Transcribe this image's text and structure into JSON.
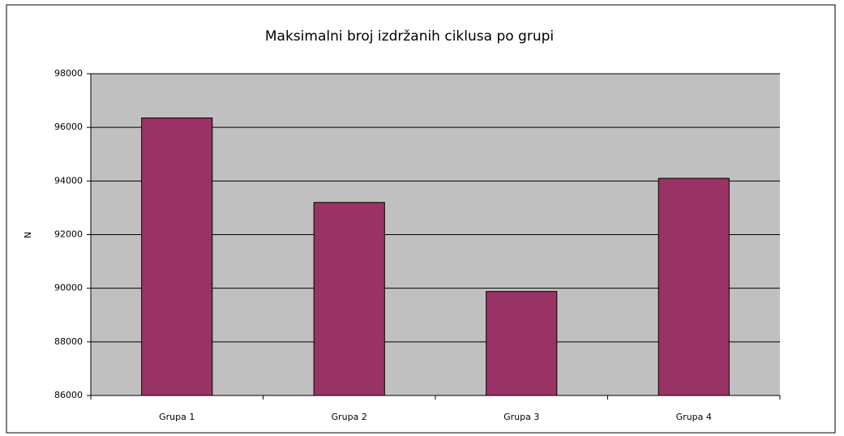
{
  "chart_data": {
    "type": "bar",
    "title": "Maksimalni broj izdržanih ciklusa po grupi",
    "y_label": "N",
    "categories": [
      "Grupa 1",
      "Grupa 2",
      "Grupa 3",
      "Grupa 4"
    ],
    "values": [
      96350,
      93200,
      89880,
      94100
    ],
    "color": "#993366",
    "ylim": [
      86000,
      98000
    ],
    "yticks": [
      86000,
      88000,
      90000,
      92000,
      94000,
      96000,
      98000
    ],
    "grid": true
  }
}
